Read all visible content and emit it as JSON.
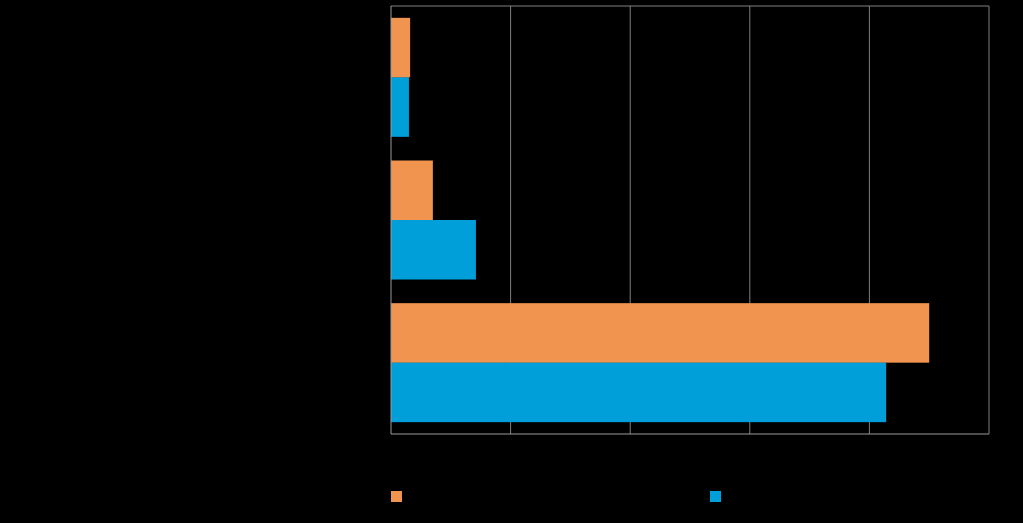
{
  "chart_data": {
    "type": "bar",
    "orientation": "horizontal",
    "categories": [
      "",
      "",
      ""
    ],
    "series": [
      {
        "values": [
          0.016,
          0.035,
          0.45
        ],
        "color": "#F0944F"
      },
      {
        "values": [
          0.015,
          0.071,
          0.414
        ],
        "color": "#009FDA"
      }
    ],
    "xlim": [
      0,
      0.5
    ],
    "x_grid_step": 0.1,
    "grid": true,
    "legend_position": "bottom",
    "background": "#000000",
    "gridline_color": "#7f7f7f",
    "axis_color": "#9a9a9a"
  }
}
